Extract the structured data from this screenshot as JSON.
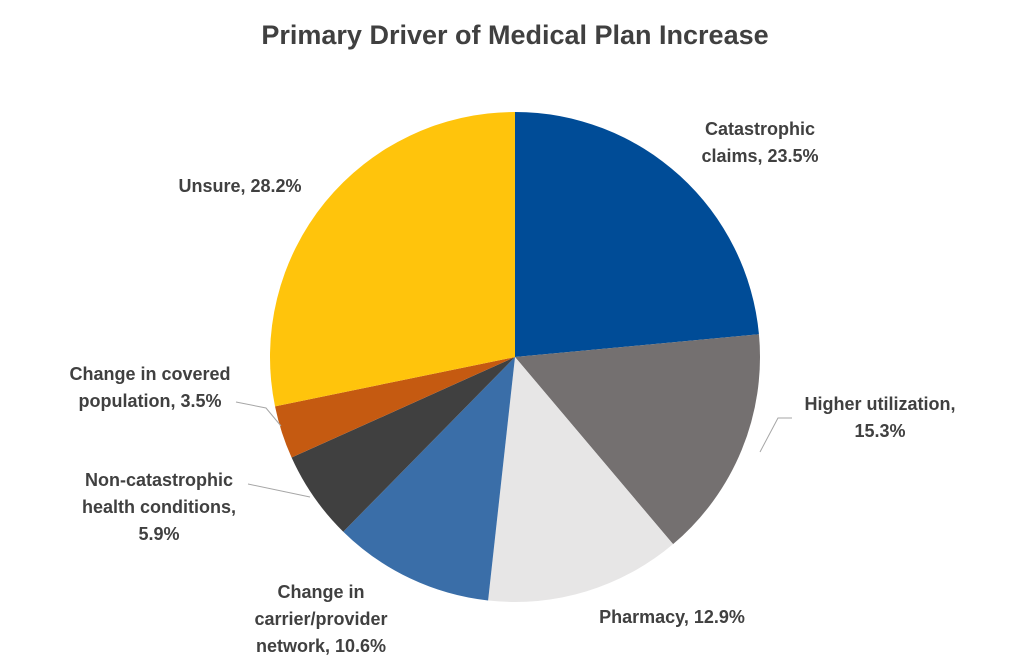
{
  "chart_data": {
    "type": "pie",
    "title": "Primary Driver of Medical Plan Increase",
    "slices": [
      {
        "label": "Catastrophic claims",
        "value": 23.5,
        "display": [
          "Catastrophic",
          "claims, 23.5%"
        ],
        "color": "#004C97"
      },
      {
        "label": "Higher utilization",
        "value": 15.3,
        "display": [
          "Higher utilization,",
          "15.3%"
        ],
        "color": "#747070"
      },
      {
        "label": "Pharmacy",
        "value": 12.9,
        "display": [
          "Pharmacy, 12.9%"
        ],
        "color": "#E7E6E6"
      },
      {
        "label": "Change in carrier/provider network",
        "value": 10.6,
        "display": [
          "Change in",
          "carrier/provider",
          "network, 10.6%"
        ],
        "color": "#3A6EA8"
      },
      {
        "label": "Non-catastrophic health conditions",
        "value": 5.9,
        "display": [
          "Non-catastrophic",
          "health conditions,",
          "5.9%"
        ],
        "color": "#404040"
      },
      {
        "label": "Change in covered population",
        "value": 3.5,
        "display": [
          "Change in covered",
          "population, 3.5%"
        ],
        "color": "#C55A11"
      },
      {
        "label": "Unsure",
        "value": 28.2,
        "display": [
          "Unsure, 28.2%"
        ],
        "color": "#FFC40C"
      }
    ]
  }
}
